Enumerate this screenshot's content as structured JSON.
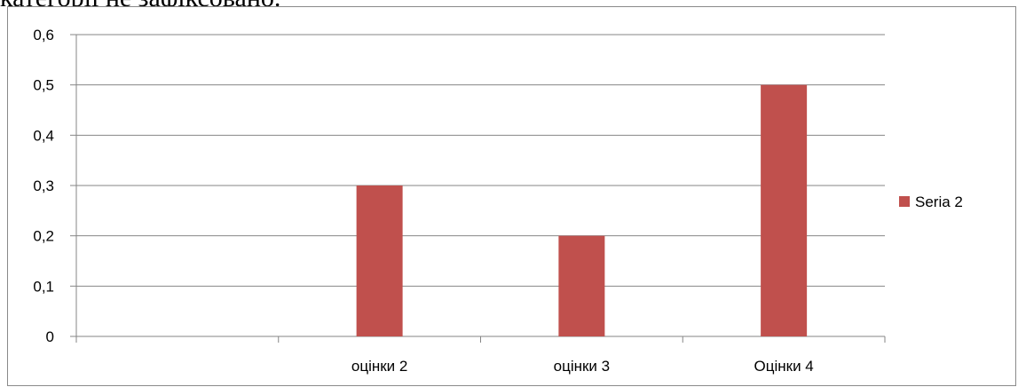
{
  "document": {
    "text_above": "категорії не зафіксовано."
  },
  "chart_data": {
    "type": "bar",
    "categories": [
      "",
      "оцінки 2",
      "оцінки 3",
      "Оцінки 4"
    ],
    "series": [
      {
        "name": "Seria 2",
        "values": [
          null,
          0.3,
          0.2,
          0.5
        ],
        "color": "#c0504d"
      }
    ],
    "ylim": [
      0,
      0.6
    ],
    "yticks": [
      0,
      0.1,
      0.2,
      0.3,
      0.4,
      0.5,
      0.6
    ],
    "ytick_labels": [
      "0",
      "0,1",
      "0,2",
      "0,3",
      "0,4",
      "0,5",
      "0,6"
    ],
    "grid": true,
    "gridline_color": "#868686",
    "legend_position": "right",
    "title": "",
    "xlabel": "",
    "ylabel": ""
  }
}
